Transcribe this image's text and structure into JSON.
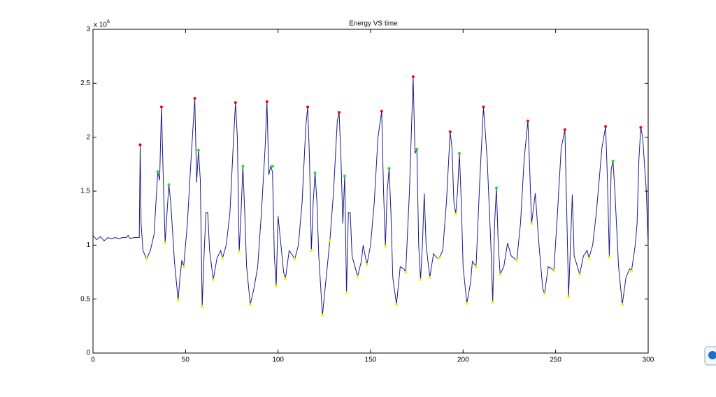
{
  "chart_data": {
    "type": "line",
    "title": "Energy VS time",
    "y_multiplier": {
      "base": "x 10",
      "exponent": "6"
    },
    "xlim": [
      0,
      300
    ],
    "xticks": [
      0,
      50,
      100,
      150,
      200,
      250,
      300
    ],
    "ylim": [
      0,
      3
    ],
    "yticks": [
      0,
      0.5,
      1,
      1.5,
      2,
      2.5,
      3
    ],
    "series": [
      {
        "style": "line",
        "color": "#1a1a8c",
        "x": [
          0,
          2,
          4,
          6,
          8,
          10,
          12,
          14,
          16,
          18,
          19,
          20,
          22,
          24,
          25,
          25.5,
          26,
          27,
          29,
          31,
          33,
          35,
          36,
          37,
          38,
          39,
          40,
          41,
          42,
          44,
          46,
          47,
          48,
          49,
          51,
          53,
          55,
          56,
          57,
          58,
          59,
          60,
          61,
          62,
          63,
          65,
          67,
          69,
          70,
          72,
          74,
          76,
          77,
          78,
          79,
          80,
          81,
          82,
          83,
          85,
          87,
          89,
          91,
          93,
          94,
          95,
          96,
          97,
          98,
          99,
          100,
          101,
          103,
          104,
          106,
          108,
          109,
          111,
          113,
          115,
          116,
          117,
          118,
          119,
          120,
          121,
          122,
          124,
          126,
          128,
          130,
          132,
          133,
          134,
          135,
          136,
          137,
          138,
          139,
          140,
          143,
          145,
          146,
          148,
          150,
          152,
          154,
          156,
          157,
          158,
          159,
          160,
          161,
          162,
          164,
          166,
          168,
          169,
          171,
          173,
          174,
          175,
          176,
          177,
          178,
          179,
          180,
          182,
          184,
          186,
          187,
          189,
          191,
          193,
          194,
          195,
          196,
          197,
          198,
          199,
          200,
          202,
          204,
          205,
          207,
          209,
          211,
          213,
          215,
          216,
          217,
          218,
          219,
          220,
          222,
          224,
          226,
          229,
          231,
          233,
          235,
          236,
          237,
          239,
          241,
          243,
          244,
          246,
          248,
          249,
          251,
          253,
          255,
          256,
          257,
          258,
          259,
          260,
          263,
          265,
          267,
          268,
          270,
          272,
          275,
          277,
          278,
          279,
          280,
          281,
          282,
          284,
          286,
          288,
          290,
          291,
          293,
          294,
          295,
          296,
          297,
          299,
          300
        ],
        "values": [
          1.09,
          1.05,
          1.08,
          1.04,
          1.07,
          1.06,
          1.07,
          1.06,
          1.07,
          1.07,
          1.09,
          1.06,
          1.07,
          1.07,
          1.07,
          1.93,
          1.2,
          0.95,
          0.87,
          0.95,
          1.1,
          1.68,
          1.6,
          2.28,
          1.6,
          1.02,
          1.3,
          1.56,
          1.4,
          0.85,
          0.49,
          0.7,
          0.86,
          0.8,
          1.2,
          1.8,
          2.36,
          1.58,
          1.88,
          1.6,
          0.43,
          0.9,
          1.3,
          1.3,
          0.95,
          0.68,
          0.88,
          0.95,
          0.88,
          1.0,
          1.3,
          2.0,
          2.32,
          2.0,
          0.94,
          1.3,
          1.73,
          1.3,
          0.8,
          0.45,
          0.6,
          0.8,
          1.3,
          1.9,
          2.33,
          1.65,
          1.73,
          1.68,
          0.9,
          0.62,
          1.27,
          1.1,
          0.75,
          0.69,
          0.95,
          0.9,
          0.87,
          1.0,
          1.4,
          2.1,
          2.28,
          1.8,
          0.95,
          1.4,
          1.67,
          1.4,
          0.9,
          0.35,
          0.7,
          1.04,
          1.5,
          2.15,
          2.23,
          1.8,
          1.2,
          1.64,
          0.56,
          1.3,
          1.3,
          0.9,
          0.71,
          0.85,
          1.0,
          0.82,
          1.0,
          1.4,
          2.0,
          2.24,
          1.5,
          0.99,
          1.5,
          1.71,
          1.3,
          0.7,
          0.45,
          0.8,
          0.78,
          0.75,
          1.5,
          2.56,
          1.85,
          1.89,
          1.0,
          0.68,
          1.0,
          1.48,
          1.0,
          0.7,
          0.92,
          0.88,
          0.88,
          0.95,
          1.4,
          2.05,
          1.9,
          1.4,
          1.29,
          1.5,
          1.85,
          1.4,
          0.8,
          0.46,
          0.65,
          0.85,
          0.8,
          1.6,
          2.28,
          1.8,
          1.0,
          0.47,
          1.2,
          1.53,
          1.0,
          0.73,
          0.8,
          1.02,
          0.9,
          0.86,
          1.2,
          1.8,
          2.15,
          1.7,
          1.2,
          1.48,
          1.0,
          0.6,
          0.55,
          0.8,
          0.78,
          0.76,
          1.3,
          1.9,
          2.07,
          1.3,
          0.52,
          1.0,
          1.47,
          0.9,
          0.73,
          0.9,
          0.95,
          0.88,
          1.0,
          1.3,
          1.9,
          2.1,
          1.6,
          0.89,
          1.7,
          1.78,
          1.5,
          0.8,
          0.45,
          0.7,
          0.78,
          0.76,
          1.0,
          1.2,
          1.8,
          2.09,
          2.0,
          1.5,
          0.99
        ]
      },
      {
        "style": "markers",
        "color": "#ff0000",
        "x": [
          25.5,
          37,
          55,
          77,
          94,
          116,
          133,
          156,
          173,
          193,
          211,
          235,
          255,
          277,
          296
        ],
        "values": [
          1.93,
          2.28,
          2.36,
          2.32,
          2.33,
          2.28,
          2.23,
          2.24,
          2.56,
          2.05,
          2.28,
          2.15,
          2.07,
          2.1,
          2.09
        ]
      },
      {
        "style": "markers",
        "color": "#22dd22",
        "x": [
          35,
          41,
          57,
          81,
          97,
          120,
          136,
          160,
          175,
          198,
          218,
          281
        ],
        "values": [
          1.68,
          1.56,
          1.88,
          1.73,
          1.73,
          1.67,
          1.64,
          1.71,
          1.89,
          1.85,
          1.53,
          1.78
        ]
      },
      {
        "style": "markers",
        "color": "#ffee00",
        "x": [
          29,
          39,
          46,
          49,
          59,
          65,
          70,
          79,
          85,
          99,
          104,
          109,
          118,
          124,
          128,
          137,
          143,
          148,
          158,
          164,
          169,
          177,
          182,
          187,
          196,
          202,
          207,
          216,
          220,
          229,
          237,
          244,
          249,
          257,
          263,
          268,
          279,
          286,
          291
        ],
        "values": [
          0.87,
          1.02,
          0.49,
          0.8,
          0.43,
          0.68,
          0.88,
          0.94,
          0.45,
          0.62,
          0.69,
          0.87,
          0.95,
          0.35,
          1.04,
          0.56,
          0.71,
          0.82,
          0.99,
          0.45,
          0.75,
          0.68,
          0.7,
          0.88,
          1.29,
          0.46,
          0.8,
          0.47,
          0.73,
          0.86,
          1.2,
          0.55,
          0.76,
          0.52,
          0.73,
          0.88,
          0.89,
          0.45,
          0.76
        ]
      }
    ]
  }
}
